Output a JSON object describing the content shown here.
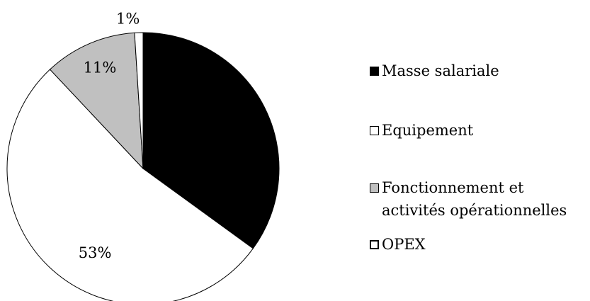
{
  "chart_data": {
    "type": "pie",
    "categories": [
      "Masse salariale",
      "Equipement",
      "Fonctionnement et activités opérationnelles",
      "OPEX"
    ],
    "values": [
      35,
      53,
      11,
      1
    ],
    "data_labels": [
      "",
      "53%",
      "11%",
      "1%"
    ],
    "colors": [
      "#000000",
      "#ffffff",
      "#c0c0c0",
      "#ffffff"
    ],
    "legend": {
      "position": "right",
      "entries": [
        {
          "lines": [
            "Masse salariale"
          ]
        },
        {
          "lines": [
            "Equipement"
          ]
        },
        {
          "lines": [
            "Fonctionnement et",
            "activités opérationnelles"
          ]
        },
        {
          "lines": [
            "OPEX"
          ]
        }
      ]
    },
    "start_angle_deg": 0,
    "direction": "clockwise"
  }
}
